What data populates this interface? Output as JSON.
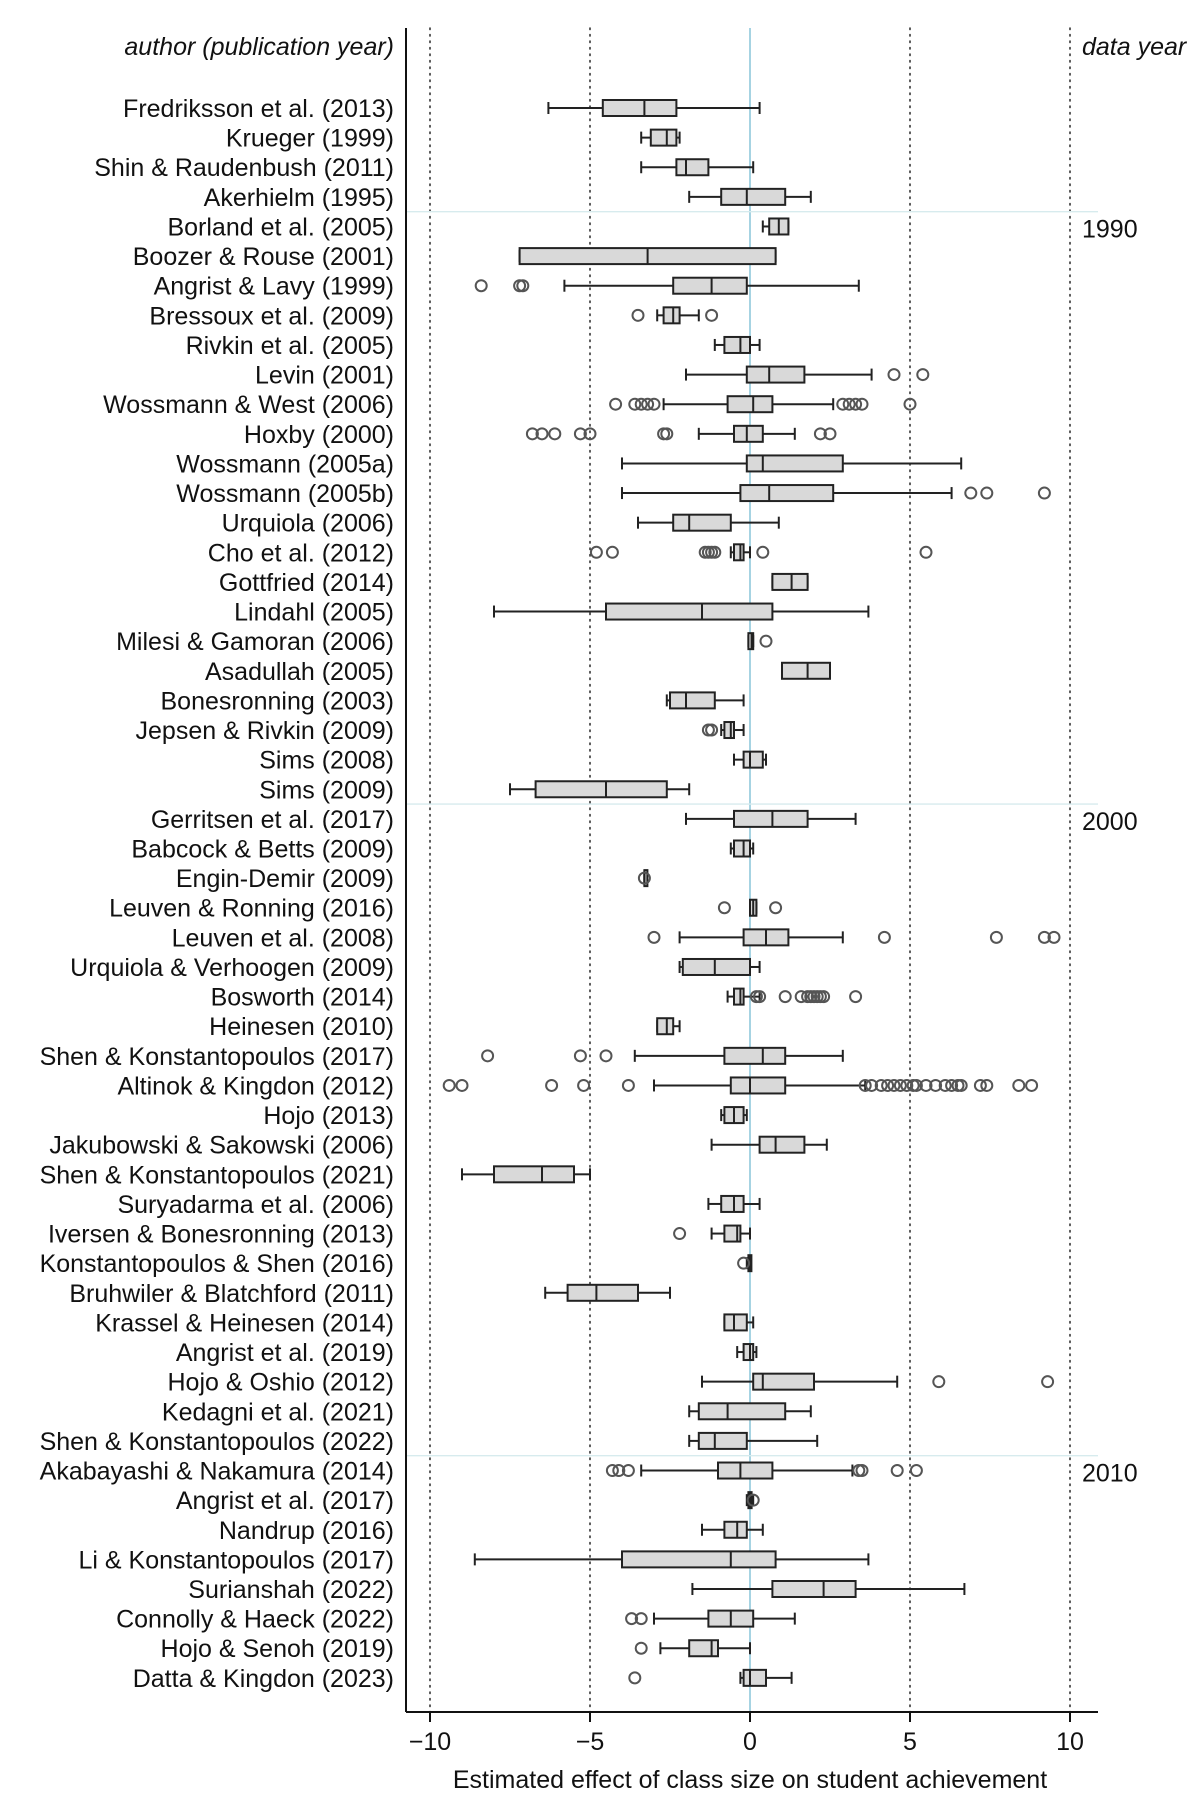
{
  "chart_data": {
    "type": "boxplot",
    "header_left": "author (publication year)",
    "header_right": "data year",
    "xlabel": "Estimated effect of class size on student achievement",
    "xlim": [
      -10.8,
      10.8
    ],
    "xticks": [
      -10,
      -5,
      0,
      5,
      10
    ],
    "gridlines_dotted": [
      -10,
      -5,
      5,
      10
    ],
    "reference_line": 0,
    "decade_markers": [
      {
        "label": "1990",
        "after_study": 3
      },
      {
        "label": "2000",
        "after_study": 23
      },
      {
        "label": "2010",
        "after_study": 45
      }
    ],
    "studies": [
      {
        "name": "Fredriksson et al. (2013)",
        "wl": -6.3,
        "q1": -4.6,
        "med": -3.3,
        "q3": -2.3,
        "wh": 0.3,
        "outliers": []
      },
      {
        "name": "Krueger (1999)",
        "wl": -3.4,
        "q1": -3.1,
        "med": -2.6,
        "q3": -2.3,
        "wh": -2.2,
        "outliers": []
      },
      {
        "name": "Shin & Raudenbush (2011)",
        "wl": -3.4,
        "q1": -2.3,
        "med": -2.0,
        "q3": -1.3,
        "wh": 0.1,
        "outliers": []
      },
      {
        "name": "Akerhielm (1995)",
        "wl": -1.9,
        "q1": -0.9,
        "med": -0.1,
        "q3": 1.1,
        "wh": 1.9,
        "outliers": []
      },
      {
        "name": "Borland et al. (2005)",
        "wl": 0.4,
        "q1": 0.6,
        "med": 0.9,
        "q3": 1.2,
        "wh": 1.2,
        "outliers": []
      },
      {
        "name": "Boozer & Rouse (2001)",
        "wl": -7.2,
        "q1": -7.2,
        "med": -3.2,
        "q3": 0.8,
        "wh": 0.8,
        "outliers": []
      },
      {
        "name": "Angrist & Lavy (1999)",
        "wl": -5.8,
        "q1": -2.4,
        "med": -1.2,
        "q3": -0.1,
        "wh": 3.4,
        "outliers": [
          -8.4,
          -7.2,
          -7.1
        ]
      },
      {
        "name": "Bressoux et al. (2009)",
        "wl": -2.9,
        "q1": -2.7,
        "med": -2.4,
        "q3": -2.2,
        "wh": -1.6,
        "outliers": [
          -3.5,
          -1.2
        ]
      },
      {
        "name": "Rivkin et al. (2005)",
        "wl": -1.1,
        "q1": -0.8,
        "med": -0.3,
        "q3": 0.0,
        "wh": 0.3,
        "outliers": []
      },
      {
        "name": "Levin (2001)",
        "wl": -2.0,
        "q1": -0.1,
        "med": 0.6,
        "q3": 1.7,
        "wh": 3.8,
        "outliers": [
          4.5,
          5.4
        ]
      },
      {
        "name": "Wossmann & West (2006)",
        "wl": -2.7,
        "q1": -0.7,
        "med": 0.1,
        "q3": 0.7,
        "wh": 2.6,
        "outliers": [
          -4.2,
          -3.6,
          -3.4,
          -3.2,
          -3.0,
          2.9,
          3.1,
          3.3,
          3.5,
          5.0
        ]
      },
      {
        "name": "Hoxby (2000)",
        "wl": -1.6,
        "q1": -0.5,
        "med": -0.1,
        "q3": 0.4,
        "wh": 1.4,
        "outliers": [
          -6.8,
          -6.5,
          -6.1,
          -5.3,
          -5.0,
          -2.7,
          -2.6,
          2.2,
          2.5
        ]
      },
      {
        "name": "Wossmann (2005a)",
        "wl": -4.0,
        "q1": -0.1,
        "med": 0.4,
        "q3": 2.9,
        "wh": 6.6,
        "outliers": []
      },
      {
        "name": "Wossmann (2005b)",
        "wl": -4.0,
        "q1": -0.3,
        "med": 0.6,
        "q3": 2.6,
        "wh": 6.3,
        "outliers": [
          6.9,
          7.4,
          9.2
        ]
      },
      {
        "name": "Urquiola (2006)",
        "wl": -3.5,
        "q1": -2.4,
        "med": -1.9,
        "q3": -0.6,
        "wh": 0.9,
        "outliers": []
      },
      {
        "name": "Cho et al. (2012)",
        "wl": -0.6,
        "q1": -0.5,
        "med": -0.3,
        "q3": -0.2,
        "wh": 0.0,
        "outliers": [
          -4.8,
          -4.3,
          -1.4,
          -1.3,
          -1.2,
          -1.1,
          0.4,
          5.5
        ]
      },
      {
        "name": "Gottfried (2014)",
        "wl": 0.7,
        "q1": 0.7,
        "med": 1.3,
        "q3": 1.8,
        "wh": 1.8,
        "outliers": []
      },
      {
        "name": "Lindahl (2005)",
        "wl": -8.0,
        "q1": -4.5,
        "med": -1.5,
        "q3": 0.7,
        "wh": 3.7,
        "outliers": []
      },
      {
        "name": "Milesi & Gamoran (2006)",
        "wl": -0.05,
        "q1": -0.05,
        "med": 0.05,
        "q3": 0.1,
        "wh": 0.1,
        "outliers": [
          0.5
        ]
      },
      {
        "name": "Asadullah (2005)",
        "wl": 1.0,
        "q1": 1.0,
        "med": 1.8,
        "q3": 2.5,
        "wh": 2.5,
        "outliers": []
      },
      {
        "name": "Bonesronning (2003)",
        "wl": -2.6,
        "q1": -2.5,
        "med": -2.0,
        "q3": -1.1,
        "wh": -0.2,
        "outliers": []
      },
      {
        "name": "Jepsen & Rivkin (2009)",
        "wl": -0.9,
        "q1": -0.8,
        "med": -0.6,
        "q3": -0.5,
        "wh": -0.2,
        "outliers": [
          -1.3,
          -1.2
        ]
      },
      {
        "name": "Sims (2008)",
        "wl": -0.5,
        "q1": -0.2,
        "med": 0.0,
        "q3": 0.4,
        "wh": 0.5,
        "outliers": []
      },
      {
        "name": "Sims (2009)",
        "wl": -7.5,
        "q1": -6.7,
        "med": -4.5,
        "q3": -2.6,
        "wh": -1.9,
        "outliers": []
      },
      {
        "name": "Gerritsen et al. (2017)",
        "wl": -2.0,
        "q1": -0.5,
        "med": 0.7,
        "q3": 1.8,
        "wh": 3.3,
        "outliers": []
      },
      {
        "name": "Babcock & Betts (2009)",
        "wl": -0.6,
        "q1": -0.5,
        "med": -0.2,
        "q3": 0.0,
        "wh": 0.1,
        "outliers": []
      },
      {
        "name": "Engin-Demir (2009)",
        "wl": -3.3,
        "q1": -3.3,
        "med": -3.3,
        "q3": -3.3,
        "wh": -3.3,
        "outliers": [
          -3.3
        ]
      },
      {
        "name": "Leuven & Ronning (2016)",
        "wl": 0.0,
        "q1": 0.0,
        "med": 0.1,
        "q3": 0.2,
        "wh": 0.2,
        "outliers": [
          -0.8,
          0.8
        ]
      },
      {
        "name": "Leuven et al. (2008)",
        "wl": -2.2,
        "q1": -0.2,
        "med": 0.5,
        "q3": 1.2,
        "wh": 2.9,
        "outliers": [
          -3.0,
          4.2,
          7.7,
          9.2,
          9.5
        ]
      },
      {
        "name": "Urquiola & Verhoogen (2009)",
        "wl": -2.2,
        "q1": -2.1,
        "med": -1.1,
        "q3": 0.0,
        "wh": 0.3,
        "outliers": []
      },
      {
        "name": "Bosworth (2014)",
        "wl": -0.7,
        "q1": -0.5,
        "med": -0.3,
        "q3": -0.2,
        "wh": 0.3,
        "outliers": [
          0.2,
          0.3,
          1.1,
          1.6,
          1.8,
          1.9,
          2.0,
          2.1,
          2.2,
          2.3,
          3.3
        ]
      },
      {
        "name": "Heinesen (2010)",
        "wl": -2.9,
        "q1": -2.9,
        "med": -2.6,
        "q3": -2.4,
        "wh": -2.2,
        "outliers": []
      },
      {
        "name": "Shen & Konstantopoulos (2017)",
        "wl": -3.6,
        "q1": -0.8,
        "med": 0.4,
        "q3": 1.1,
        "wh": 2.9,
        "outliers": [
          -8.2,
          -5.3,
          -4.5
        ]
      },
      {
        "name": "Altinok & Kingdon (2012)",
        "wl": -3.0,
        "q1": -0.6,
        "med": 0.0,
        "q3": 1.1,
        "wh": 3.6,
        "outliers": [
          -9.4,
          -9.0,
          -6.2,
          -5.2,
          -3.8,
          3.6,
          3.8,
          4.1,
          4.3,
          4.5,
          4.7,
          4.9,
          5.1,
          5.2,
          5.5,
          5.8,
          6.1,
          6.3,
          6.5,
          6.6,
          7.2,
          7.4,
          8.4,
          8.8
        ]
      },
      {
        "name": "Hojo (2013)",
        "wl": -0.9,
        "q1": -0.8,
        "med": -0.5,
        "q3": -0.2,
        "wh": -0.1,
        "outliers": []
      },
      {
        "name": "Jakubowski & Sakowski (2006)",
        "wl": -1.2,
        "q1": 0.3,
        "med": 0.8,
        "q3": 1.7,
        "wh": 2.4,
        "outliers": []
      },
      {
        "name": "Shen & Konstantopoulos (2021)",
        "wl": -9.0,
        "q1": -8.0,
        "med": -6.5,
        "q3": -5.5,
        "wh": -5.0,
        "outliers": []
      },
      {
        "name": "Suryadarma et al. (2006)",
        "wl": -1.3,
        "q1": -0.9,
        "med": -0.5,
        "q3": -0.2,
        "wh": 0.3,
        "outliers": []
      },
      {
        "name": "Iversen & Bonesronning (2013)",
        "wl": -1.2,
        "q1": -0.8,
        "med": -0.4,
        "q3": -0.3,
        "wh": 0.0,
        "outliers": [
          -2.2
        ]
      },
      {
        "name": "Konstantopoulos & Shen (2016)",
        "wl": -0.1,
        "q1": -0.05,
        "med": 0.0,
        "q3": 0.0,
        "wh": 0.0,
        "outliers": [
          -0.2
        ]
      },
      {
        "name": "Bruhwiler & Blatchford (2011)",
        "wl": -6.4,
        "q1": -5.7,
        "med": -4.8,
        "q3": -3.5,
        "wh": -2.5,
        "outliers": []
      },
      {
        "name": "Krassel & Heinesen (2014)",
        "wl": -0.8,
        "q1": -0.8,
        "med": -0.5,
        "q3": -0.1,
        "wh": 0.1,
        "outliers": []
      },
      {
        "name": "Angrist et al. (2019)",
        "wl": -0.4,
        "q1": -0.2,
        "med": 0.0,
        "q3": 0.1,
        "wh": 0.2,
        "outliers": []
      },
      {
        "name": "Hojo & Oshio (2012)",
        "wl": -1.5,
        "q1": 0.1,
        "med": 0.4,
        "q3": 2.0,
        "wh": 4.6,
        "outliers": [
          5.9,
          9.3
        ]
      },
      {
        "name": "Kedagni et al. (2021)",
        "wl": -1.9,
        "q1": -1.6,
        "med": -0.7,
        "q3": 1.1,
        "wh": 1.9,
        "outliers": []
      },
      {
        "name": "Shen & Konstantopoulos (2022)",
        "wl": -1.9,
        "q1": -1.6,
        "med": -1.1,
        "q3": -0.1,
        "wh": 2.1,
        "outliers": []
      },
      {
        "name": "Akabayashi & Nakamura (2014)",
        "wl": -3.4,
        "q1": -1.0,
        "med": -0.3,
        "q3": 0.7,
        "wh": 3.2,
        "outliers": [
          -4.3,
          -4.1,
          -3.8,
          3.4,
          3.5,
          4.6,
          5.2
        ]
      },
      {
        "name": "Angrist et al. (2017)",
        "wl": -0.1,
        "q1": -0.05,
        "med": 0.0,
        "q3": 0.05,
        "wh": 0.1,
        "outliers": [
          0.1
        ]
      },
      {
        "name": "Nandrup (2016)",
        "wl": -1.5,
        "q1": -0.8,
        "med": -0.4,
        "q3": -0.1,
        "wh": 0.4,
        "outliers": []
      },
      {
        "name": "Li & Konstantopoulos (2017)",
        "wl": -8.6,
        "q1": -4.0,
        "med": -0.6,
        "q3": 0.8,
        "wh": 3.7,
        "outliers": []
      },
      {
        "name": "Surianshah (2022)",
        "wl": -1.8,
        "q1": 0.7,
        "med": 2.3,
        "q3": 3.3,
        "wh": 6.7,
        "outliers": []
      },
      {
        "name": "Connolly & Haeck (2022)",
        "wl": -3.0,
        "q1": -1.3,
        "med": -0.6,
        "q3": 0.1,
        "wh": 1.4,
        "outliers": [
          -3.7,
          -3.4
        ]
      },
      {
        "name": "Hojo & Senoh (2019)",
        "wl": -2.8,
        "q1": -1.9,
        "med": -1.2,
        "q3": -1.0,
        "wh": 0.0,
        "outliers": [
          -3.4
        ]
      },
      {
        "name": "Datta & Kingdon (2023)",
        "wl": -0.3,
        "q1": -0.2,
        "med": 0.0,
        "q3": 0.5,
        "wh": 1.3,
        "outliers": [
          -3.6
        ]
      }
    ]
  }
}
